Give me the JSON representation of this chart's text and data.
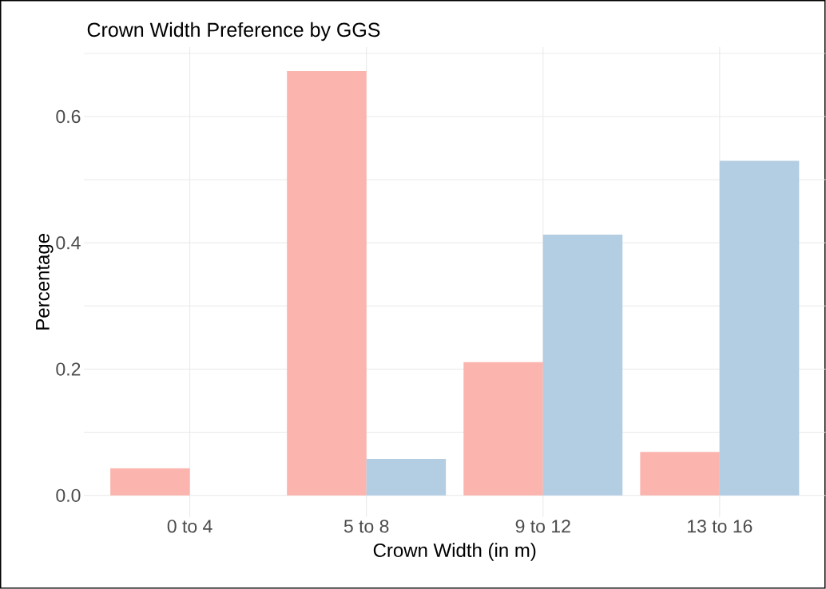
{
  "chart_data": {
    "type": "bar",
    "title": "Crown Width Preference by GGS",
    "xlabel": "Crown Width (in m)",
    "ylabel": "Percentage",
    "categories": [
      "0 to 4",
      "5 to 8",
      "9 to 12",
      "13 to 16"
    ],
    "series": [
      {
        "color": "#fbb4ae",
        "values": [
          0.043,
          0.672,
          0.211,
          0.069
        ]
      },
      {
        "color": "#b3cde3",
        "values": [
          null,
          0.058,
          0.413,
          0.53
        ]
      }
    ],
    "ylim": [
      -0.034,
      0.71
    ],
    "yticks": [
      {
        "value": 0,
        "label": "0.0"
      },
      {
        "value": 0.1,
        "label": null
      },
      0.2,
      {
        "value": 0.3,
        "label": null
      },
      0.4,
      {
        "value": 0.5,
        "label": null
      },
      0.6,
      {
        "value": 0.7,
        "label": null
      }
    ],
    "grid": true
  }
}
